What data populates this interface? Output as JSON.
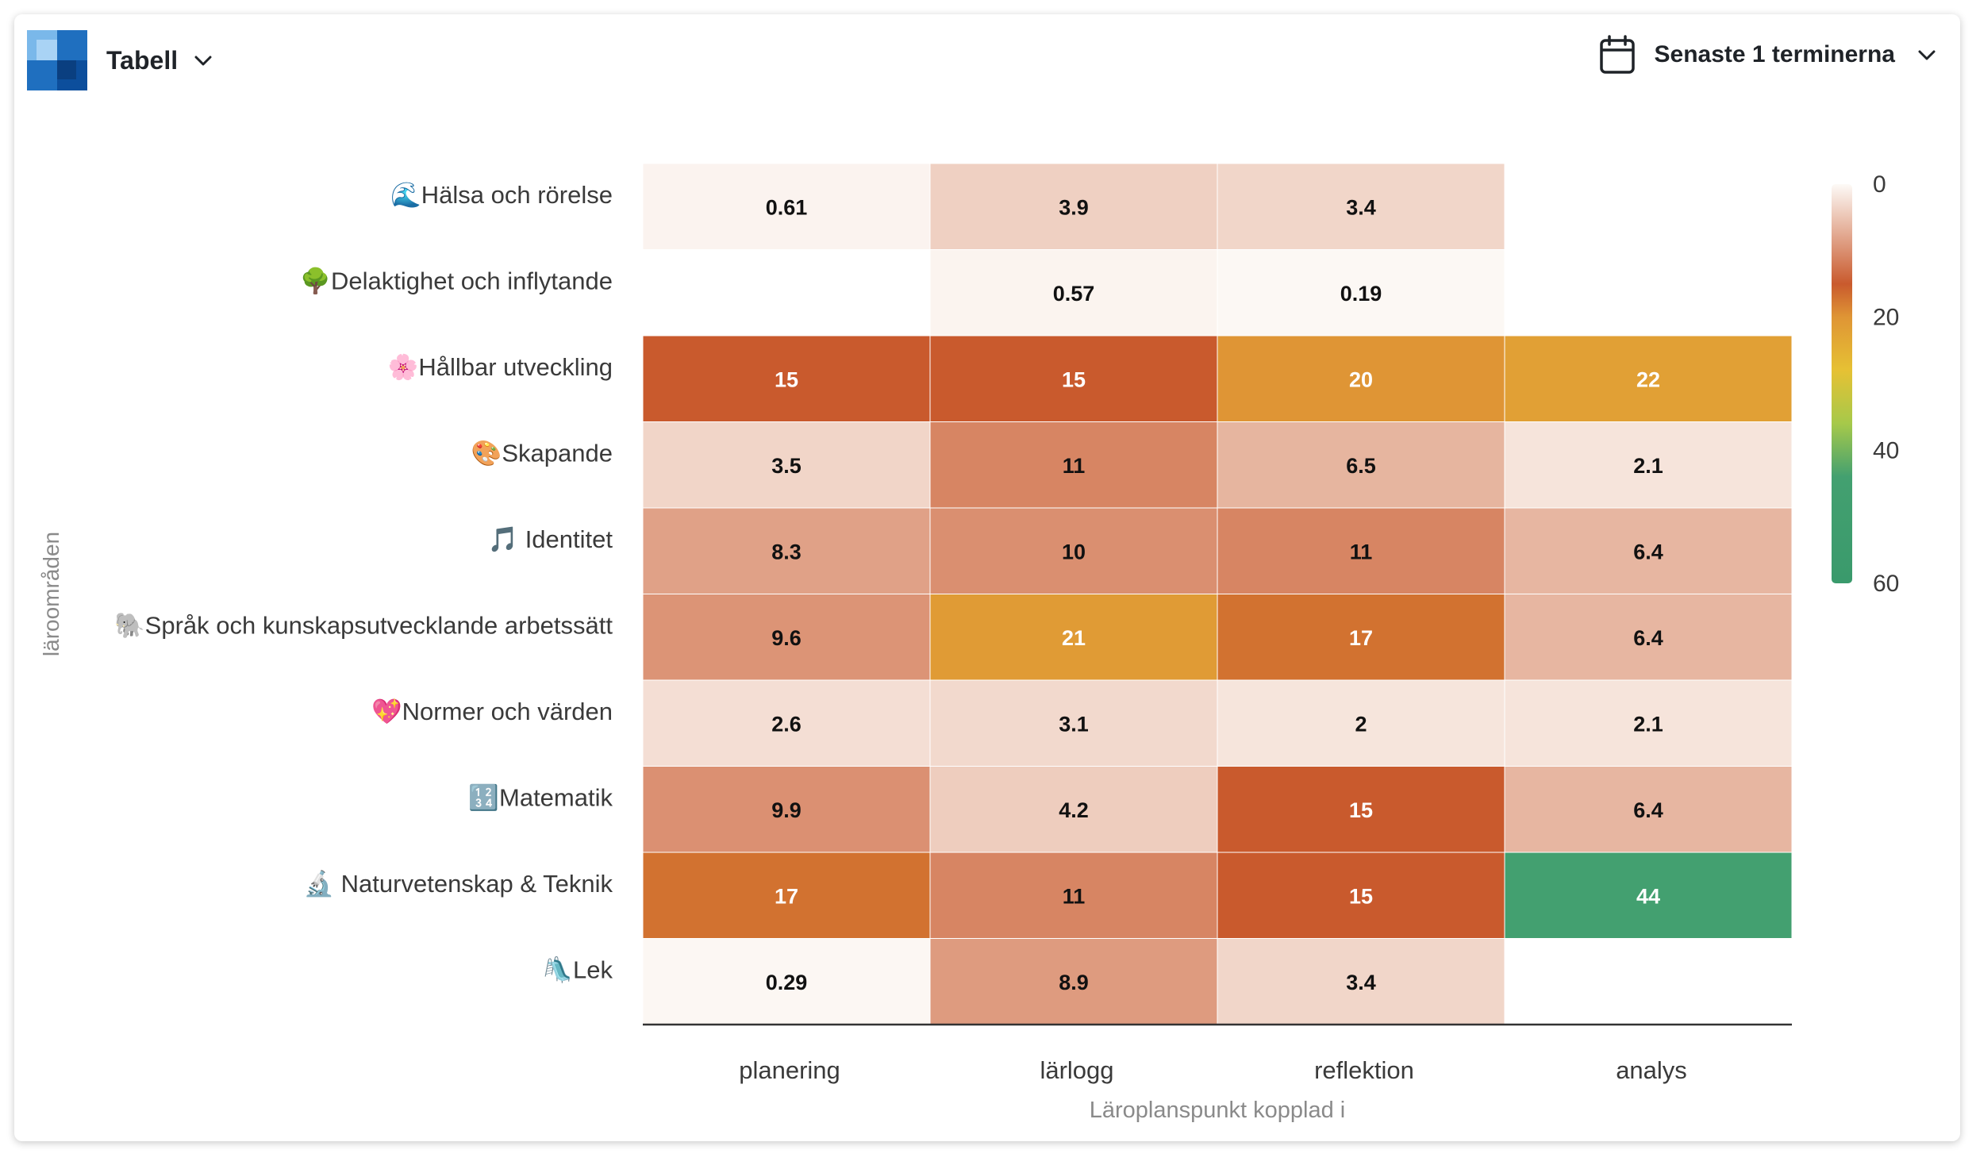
{
  "toolbar": {
    "viz_label": "Tabell",
    "period_label": "Senaste 1 terminerna",
    "viz_icon": "grid-app-icon",
    "calendar_icon": "calendar-icon"
  },
  "chart_data": {
    "type": "heatmap",
    "title": "",
    "xlabel": "Läroplanspunkt kopplad i",
    "ylabel": "läroområden",
    "categories_x": [
      "planering",
      "lärlogg",
      "reflektion",
      "analys"
    ],
    "categories_y": [
      "🌊Hälsa och rörelse",
      "🌳Delaktighet och inflytande",
      "🌸Hållbar utveckling",
      "🎨Skapande",
      "🎵 Identitet",
      "🐘Språk och kunskapsutvecklande arbetssätt",
      "💖Normer och värden",
      "🔢Matematik",
      "🔬 Naturvetenskap & Teknik",
      "🛝Lek"
    ],
    "values": [
      [
        0.61,
        3.9,
        3.4,
        null
      ],
      [
        null,
        0.57,
        0.19,
        null
      ],
      [
        15,
        15,
        20,
        22
      ],
      [
        3.5,
        11,
        6.5,
        2.1
      ],
      [
        8.3,
        10,
        11,
        6.4
      ],
      [
        9.6,
        21,
        17,
        6.4
      ],
      [
        2.6,
        3.1,
        2,
        2.1
      ],
      [
        9.9,
        4.2,
        15,
        6.4
      ],
      [
        17,
        11,
        15,
        44
      ],
      [
        0.29,
        8.9,
        3.4,
        null
      ]
    ],
    "value_labels": [
      [
        "0.61",
        "3.9",
        "3.4",
        ""
      ],
      [
        "",
        "0.57",
        "0.19",
        ""
      ],
      [
        "15",
        "15",
        "20",
        "22"
      ],
      [
        "3.5",
        "11",
        "6.5",
        "2.1"
      ],
      [
        "8.3",
        "10",
        "11",
        "6.4"
      ],
      [
        "9.6",
        "21",
        "17",
        "6.4"
      ],
      [
        "2.6",
        "3.1",
        "2",
        "2.1"
      ],
      [
        "9.9",
        "4.2",
        "15",
        "6.4"
      ],
      [
        "17",
        "11",
        "15",
        "44"
      ],
      [
        "0.29",
        "8.9",
        "3.4",
        ""
      ]
    ],
    "colorscale": {
      "range": [
        0,
        60
      ],
      "ticks": [
        0,
        20,
        40,
        60
      ],
      "stops": [
        {
          "value": 0,
          "color": "#fdfaf7"
        },
        {
          "value": 15,
          "color": "#c95a2d"
        },
        {
          "value": 20,
          "color": "#df9535"
        },
        {
          "value": 28,
          "color": "#e6c134"
        },
        {
          "value": 36,
          "color": "#a6c94a"
        },
        {
          "value": 44,
          "color": "#43a070"
        },
        {
          "value": 60,
          "color": "#3a9a6c"
        }
      ]
    },
    "legend_position": "right"
  }
}
